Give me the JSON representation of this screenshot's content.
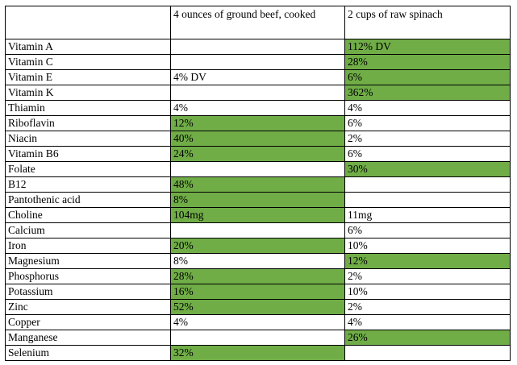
{
  "table": {
    "headers": [
      "",
      "4 ounces of ground beef, cooked",
      "2 cups of raw spinach"
    ],
    "rows": [
      {
        "nutrient": "Vitamin A",
        "beef": "",
        "beef_hl": false,
        "spinach": "112% DV",
        "spinach_hl": true
      },
      {
        "nutrient": "Vitamin C",
        "beef": "",
        "beef_hl": false,
        "spinach": "28%",
        "spinach_hl": true
      },
      {
        "nutrient": "Vitamin E",
        "beef": "4% DV",
        "beef_hl": false,
        "spinach": "6%",
        "spinach_hl": true
      },
      {
        "nutrient": "Vitamin K",
        "beef": "",
        "beef_hl": false,
        "spinach": "362%",
        "spinach_hl": true
      },
      {
        "nutrient": "Thiamin",
        "beef": "4%",
        "beef_hl": false,
        "spinach": "4%",
        "spinach_hl": false
      },
      {
        "nutrient": "Riboflavin",
        "beef": "12%",
        "beef_hl": true,
        "spinach": "6%",
        "spinach_hl": false
      },
      {
        "nutrient": "Niacin",
        "beef": "40%",
        "beef_hl": true,
        "spinach": "2%",
        "spinach_hl": false
      },
      {
        "nutrient": "Vitamin B6",
        "beef": "24%",
        "beef_hl": true,
        "spinach": "6%",
        "spinach_hl": false
      },
      {
        "nutrient": "Folate",
        "beef": "",
        "beef_hl": false,
        "spinach": "30%",
        "spinach_hl": true
      },
      {
        "nutrient": "B12",
        "beef": "48%",
        "beef_hl": true,
        "spinach": "",
        "spinach_hl": false
      },
      {
        "nutrient": "Pantothenic acid",
        "beef": "8%",
        "beef_hl": true,
        "spinach": "",
        "spinach_hl": false
      },
      {
        "nutrient": "Choline",
        "beef": "104mg",
        "beef_hl": true,
        "spinach": "11mg",
        "spinach_hl": false
      },
      {
        "nutrient": "Calcium",
        "beef": "",
        "beef_hl": false,
        "spinach": "6%",
        "spinach_hl": false
      },
      {
        "nutrient": "Iron",
        "beef": "20%",
        "beef_hl": true,
        "spinach": "10%",
        "spinach_hl": false
      },
      {
        "nutrient": "Magnesium",
        "beef": "8%",
        "beef_hl": false,
        "spinach": "12%",
        "spinach_hl": true
      },
      {
        "nutrient": "Phosphorus",
        "beef": "28%",
        "beef_hl": true,
        "spinach": "2%",
        "spinach_hl": false
      },
      {
        "nutrient": "Potassium",
        "beef": "16%",
        "beef_hl": true,
        "spinach": "10%",
        "spinach_hl": false
      },
      {
        "nutrient": "Zinc",
        "beef": "52%",
        "beef_hl": true,
        "spinach": "2%",
        "spinach_hl": false
      },
      {
        "nutrient": "Copper",
        "beef": "4%",
        "beef_hl": false,
        "spinach": "4%",
        "spinach_hl": false
      },
      {
        "nutrient": "Manganese",
        "beef": "",
        "beef_hl": false,
        "spinach": "26%",
        "spinach_hl": true
      },
      {
        "nutrient": "Selenium",
        "beef": "32%",
        "beef_hl": true,
        "spinach": "",
        "spinach_hl": false
      }
    ]
  },
  "colors": {
    "highlight": "#70ad47",
    "border": "#000000"
  }
}
